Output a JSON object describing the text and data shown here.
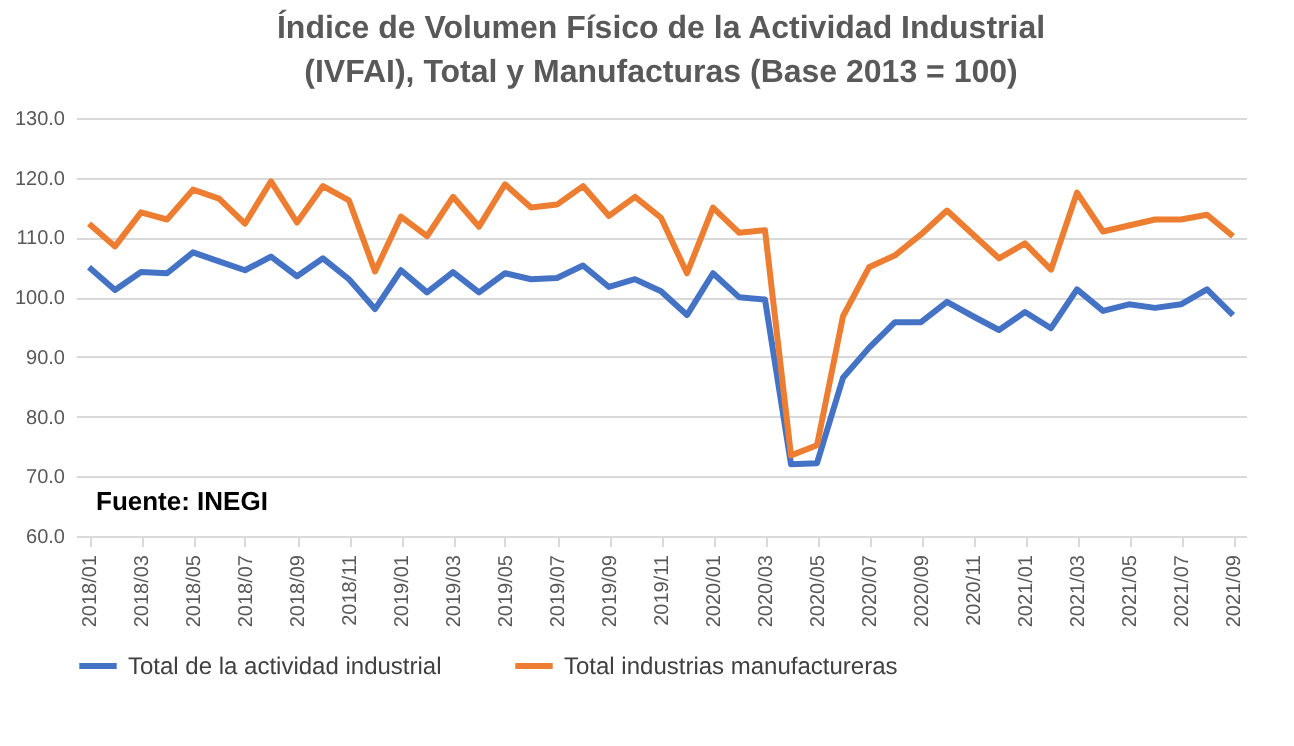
{
  "chart_data": {
    "type": "line",
    "title": "Índice de Volumen Físico de la Actividad Industrial (IVFAI), Total y Manufacturas (Base 2013 = 100)",
    "categories": [
      "2018/01",
      null,
      "2018/03",
      null,
      "2018/05",
      null,
      "2018/07",
      null,
      "2018/09",
      null,
      "2018/11",
      null,
      "2019/01",
      null,
      "2019/03",
      null,
      "2019/05",
      null,
      "2019/07",
      null,
      "2019/09",
      null,
      "2019/11",
      null,
      "2020/01",
      null,
      "2020/03",
      null,
      "2020/05",
      null,
      "2020/07",
      null,
      "2020/09",
      null,
      "2020/11",
      null,
      "2021/01",
      null,
      "2021/03",
      null,
      "2021/05",
      null,
      "2021/07",
      null,
      "2021/09"
    ],
    "series": [
      {
        "name": "Total de la actividad industrial",
        "color": "#4472c4",
        "values": [
          105,
          101.2,
          104.2,
          104,
          107.5,
          106,
          104.5,
          106.8,
          103.5,
          106.5,
          103,
          98,
          104.5,
          100.8,
          104.2,
          100.8,
          104,
          103,
          103.2,
          105.3,
          101.7,
          103,
          101,
          97,
          104,
          100,
          99.6,
          72,
          72.2,
          86.5,
          91.5,
          95.8,
          95.8,
          99.2,
          96.8,
          94.5,
          97.5,
          94.8,
          101.3,
          97.7,
          98.8,
          98.2,
          98.8,
          101.3,
          97
        ]
      },
      {
        "name": "Total industrias manufactureras",
        "color": "#ed7d31",
        "values": [
          112.3,
          108.5,
          114.2,
          113,
          118,
          116.5,
          112.3,
          119.4,
          112.5,
          118.6,
          116.2,
          104.3,
          113.5,
          110.2,
          116.8,
          111.8,
          118.9,
          115,
          115.5,
          118.6,
          113.6,
          116.8,
          113.3,
          104,
          115,
          110.8,
          111.2,
          73.5,
          75.2,
          96.8,
          105,
          107,
          110.5,
          114.5,
          110.5,
          106.5,
          109,
          104.6,
          117.5,
          111,
          112,
          113,
          113,
          113.8,
          110.2
        ]
      }
    ],
    "ylim": [
      60,
      130
    ],
    "yticks": [
      {
        "value": 60,
        "label": "60.0"
      },
      {
        "value": 70,
        "label": "70.0"
      },
      {
        "value": 80,
        "label": "80.0"
      },
      {
        "value": 90,
        "label": "90.0"
      },
      {
        "value": 100,
        "label": "100.0"
      },
      {
        "value": 110,
        "label": "110.0"
      },
      {
        "value": 120,
        "label": "120.0"
      },
      {
        "value": 130,
        "label": "130.0"
      }
    ],
    "grid": "y",
    "legend": "bottom",
    "annotations": [
      "Fuente: INEGI"
    ]
  }
}
